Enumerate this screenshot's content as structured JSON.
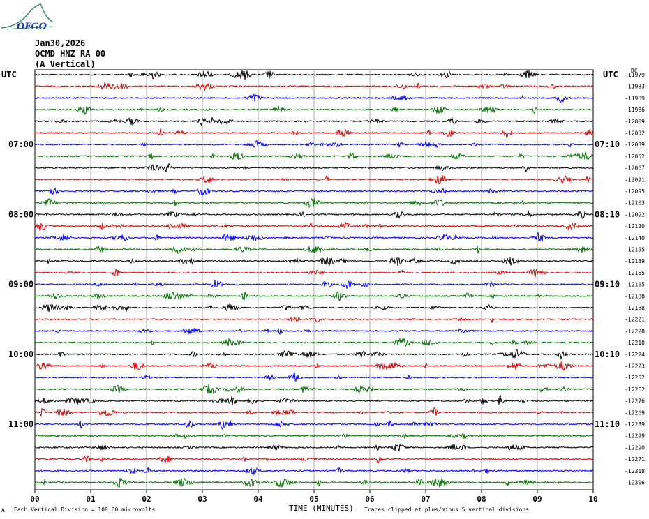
{
  "header": {
    "date": "Jan30,2026",
    "station": "OCMD HNZ RA 00",
    "component": "(A Vertical)",
    "logo_text": "OFGO"
  },
  "left_axis_label": "UTC",
  "right_axis_label": "UTC",
  "right_col_header": "DC",
  "footer": {
    "scale_note": "Each Vertical Division =  100.00 microvolts",
    "clip_note": "Traces clipped at plus/minus 5 vertical divisions",
    "footer_mark": "A"
  },
  "chart_data": {
    "type": "line",
    "xlabel": "TIME (MINUTES)",
    "x_ticks": [
      "00",
      "01",
      "02",
      "03",
      "04",
      "05",
      "06",
      "07",
      "08",
      "09",
      "10"
    ],
    "xlim": [
      0,
      10
    ],
    "trace_colors": [
      "#000000",
      "#e00000",
      "#0000ff",
      "#007000"
    ],
    "left_times": [
      {
        "row": 6,
        "label": "07:00"
      },
      {
        "row": 12,
        "label": "08:00"
      },
      {
        "row": 18,
        "label": "09:00"
      },
      {
        "row": 24,
        "label": "10:00"
      },
      {
        "row": 30,
        "label": "11:00"
      }
    ],
    "right_times": [
      {
        "row": 6,
        "label": "07:10"
      },
      {
        "row": 12,
        "label": "08:10"
      },
      {
        "row": 18,
        "label": "09:10"
      },
      {
        "row": 24,
        "label": "10:10"
      },
      {
        "row": 30,
        "label": "11:10"
      }
    ],
    "dc_offsets": [
      "-11979",
      "-11983",
      "-11989",
      "-11986",
      "-12009",
      "-12032",
      "-12039",
      "-12052",
      "-12067",
      "-12091",
      "-12095",
      "-12103",
      "-12092",
      "-12120",
      "-12140",
      "-12155",
      "-12139",
      "-12165",
      "-12165",
      "-12188",
      "-12188",
      "-12221",
      "-12228",
      "-12210",
      "-12224",
      "-12223",
      "-12252",
      "-12262",
      "-12276",
      "-12269",
      "-12289",
      "-12299",
      "-12290",
      "-12271",
      "-12318",
      "-12306"
    ]
  }
}
